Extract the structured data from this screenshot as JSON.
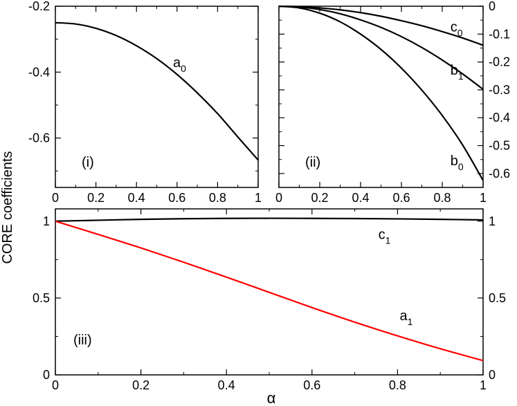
{
  "shared_ylabel": "CORE coefficients",
  "shared_xlabel": "α",
  "chart_data": [
    {
      "type": "line",
      "panel_label": "(i)",
      "xlim": [
        0,
        1
      ],
      "ylim": [
        -0.75,
        -0.2
      ],
      "y_axis_side": "left",
      "xticks": [
        "0",
        "0.2",
        "0.4",
        "0.6",
        "0.8",
        "1"
      ],
      "yticks": [
        {
          "value": -0.2,
          "label": "-0.2"
        },
        {
          "value": -0.4,
          "label": "-0.4"
        },
        {
          "value": -0.6,
          "label": "-0.6"
        }
      ],
      "series": [
        {
          "name_base": "a",
          "name_sub": "0",
          "color": "#000000",
          "label_at": [
            0.58,
            -0.385
          ],
          "x": [
            0,
            0.1,
            0.2,
            0.3,
            0.4,
            0.5,
            0.6,
            0.7,
            0.8,
            0.9,
            1.0
          ],
          "values": [
            -0.25,
            -0.254,
            -0.267,
            -0.289,
            -0.32,
            -0.359,
            -0.407,
            -0.463,
            -0.526,
            -0.597,
            -0.667
          ]
        }
      ]
    },
    {
      "type": "line",
      "panel_label": "(ii)",
      "xlim": [
        0,
        1
      ],
      "ylim": [
        -0.65,
        0
      ],
      "y_axis_side": "right",
      "xticks": [
        "0",
        "0.2",
        "0.4",
        "0.6",
        "0.8",
        "1"
      ],
      "yticks": [
        {
          "value": 0,
          "label": "0"
        },
        {
          "value": -0.1,
          "label": "-0.1"
        },
        {
          "value": -0.2,
          "label": "-0.2"
        },
        {
          "value": -0.3,
          "label": "-0.3"
        },
        {
          "value": -0.4,
          "label": "-0.4"
        },
        {
          "value": -0.5,
          "label": "-0.5"
        },
        {
          "value": -0.6,
          "label": "-0.6"
        }
      ],
      "series": [
        {
          "name_base": "c",
          "name_sub": "0",
          "color": "#000000",
          "label_at": [
            0.84,
            -0.09
          ],
          "x": [
            0,
            0.1,
            0.2,
            0.3,
            0.4,
            0.5,
            0.6,
            0.7,
            0.8,
            0.9,
            1.0
          ],
          "values": [
            0,
            -0.0015,
            -0.006,
            -0.013,
            -0.023,
            -0.036,
            -0.052,
            -0.07,
            -0.091,
            -0.114,
            -0.14
          ]
        },
        {
          "name_base": "b",
          "name_sub": "1",
          "color": "#000000",
          "label_at": [
            0.84,
            -0.245
          ],
          "x": [
            0,
            0.1,
            0.2,
            0.3,
            0.4,
            0.5,
            0.6,
            0.7,
            0.8,
            0.9,
            1.0
          ],
          "values": [
            0,
            -0.003,
            -0.012,
            -0.027,
            -0.049,
            -0.076,
            -0.109,
            -0.148,
            -0.193,
            -0.243,
            -0.298
          ]
        },
        {
          "name_base": "b",
          "name_sub": "0",
          "color": "#000000",
          "label_at": [
            0.84,
            -0.57
          ],
          "x": [
            0,
            0.1,
            0.2,
            0.3,
            0.4,
            0.5,
            0.6,
            0.7,
            0.8,
            0.9,
            1.0
          ],
          "values": [
            0,
            -0.006,
            -0.025,
            -0.056,
            -0.1,
            -0.155,
            -0.222,
            -0.301,
            -0.392,
            -0.498,
            -0.625
          ]
        }
      ]
    },
    {
      "type": "line",
      "panel_label": "(iii)",
      "xlim": [
        0,
        1
      ],
      "ylim": [
        0,
        1.08
      ],
      "y_axis_side": "both",
      "xticks": [
        "0",
        "0.2",
        "0.4",
        "0.6",
        "0.8",
        "1"
      ],
      "yticks": [
        {
          "value": 0,
          "label": "0"
        },
        {
          "value": 0.5,
          "label": "0.5"
        },
        {
          "value": 1,
          "label": "1"
        }
      ],
      "series": [
        {
          "name_base": "c",
          "name_sub": "1",
          "color": "#000000",
          "label_at": [
            0.755,
            0.885
          ],
          "x": [
            0,
            0.1,
            0.2,
            0.3,
            0.4,
            0.5,
            0.6,
            0.7,
            0.8,
            0.9,
            1.0
          ],
          "values": [
            1.0,
            1.006,
            1.012,
            1.016,
            1.018,
            1.019,
            1.018,
            1.017,
            1.015,
            1.012,
            1.008
          ]
        },
        {
          "name_base": "a",
          "name_sub": "1",
          "color": "#ff0000",
          "label_at": [
            0.805,
            0.355
          ],
          "x": [
            0,
            0.1,
            0.2,
            0.3,
            0.4,
            0.5,
            0.6,
            0.7,
            0.8,
            0.9,
            1.0
          ],
          "values": [
            1.0,
            0.914,
            0.826,
            0.733,
            0.636,
            0.537,
            0.438,
            0.343,
            0.254,
            0.17,
            0.093
          ]
        }
      ]
    }
  ]
}
